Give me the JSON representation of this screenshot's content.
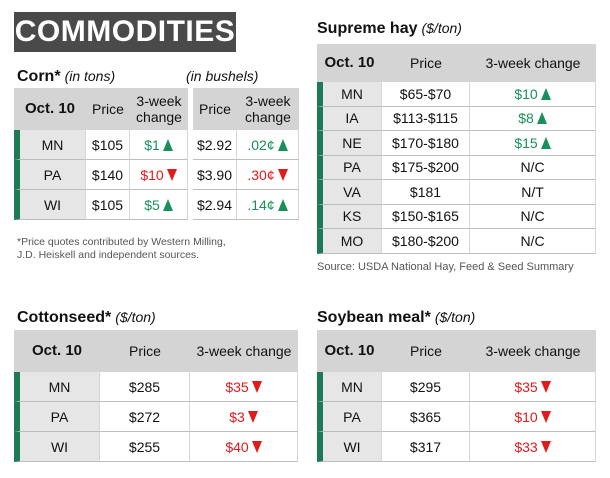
{
  "header": {
    "title": "COMMODITIES"
  },
  "corn": {
    "title": "Corn*",
    "unit": "(in tons)",
    "unit2": "(in bushels)",
    "columns": [
      "Oct. 10",
      "Price",
      "3-week change",
      "Price",
      "3-week change"
    ],
    "rows": [
      [
        "MN",
        "$105",
        {
          "text": "$1",
          "trend": "up"
        },
        "$2.92",
        {
          "text": ".02¢",
          "trend": "up"
        }
      ],
      [
        "PA",
        "$140",
        {
          "text": "$10",
          "trend": "down"
        },
        "$3.90",
        {
          "text": ".30¢",
          "trend": "down"
        }
      ],
      [
        "WI",
        "$105",
        {
          "text": "$5",
          "trend": "up"
        },
        "$2.94",
        {
          "text": ".14¢",
          "trend": "up"
        }
      ]
    ]
  },
  "footnote": "*Price quotes contributed by Western Milling, J.D. Heiskell and independent sources.",
  "hay": {
    "title": "Supreme hay",
    "unit": "($/ton)",
    "columns": [
      "Oct. 10",
      "Price",
      "3-week change"
    ],
    "rows": [
      [
        "MN",
        "$65-$70",
        {
          "text": "$10",
          "trend": "up"
        }
      ],
      [
        "IA",
        "$113-$115",
        {
          "text": "$8",
          "trend": "up"
        }
      ],
      [
        "NE",
        "$170-$180",
        {
          "text": "$15",
          "trend": "up"
        }
      ],
      [
        "PA",
        "$175-$200",
        "N/C"
      ],
      [
        "VA",
        "$181",
        "N/T"
      ],
      [
        "KS",
        "$150-$165",
        "N/C"
      ],
      [
        "MO",
        "$180-$200",
        "N/C"
      ]
    ],
    "source": "Source: USDA National Hay, Feed & Seed Summary"
  },
  "cottonseed": {
    "title": "Cottonseed*",
    "unit": "($/ton)",
    "columns": [
      "Oct. 10",
      "Price",
      "3-week change"
    ],
    "rows": [
      [
        "MN",
        "$285",
        {
          "text": "$35",
          "trend": "down"
        }
      ],
      [
        "PA",
        "$272",
        {
          "text": "$3",
          "trend": "down"
        }
      ],
      [
        "WI",
        "$255",
        {
          "text": "$40",
          "trend": "down"
        }
      ]
    ]
  },
  "soybean": {
    "title": "Soybean meal*",
    "unit": "($/ton)",
    "columns": [
      "Oct. 10",
      "Price",
      "3-week change"
    ],
    "rows": [
      [
        "MN",
        "$295",
        {
          "text": "$35",
          "trend": "down"
        }
      ],
      [
        "PA",
        "$365",
        {
          "text": "$10",
          "trend": "down"
        }
      ],
      [
        "WI",
        "$317",
        {
          "text": "$33",
          "trend": "down"
        }
      ]
    ]
  }
}
